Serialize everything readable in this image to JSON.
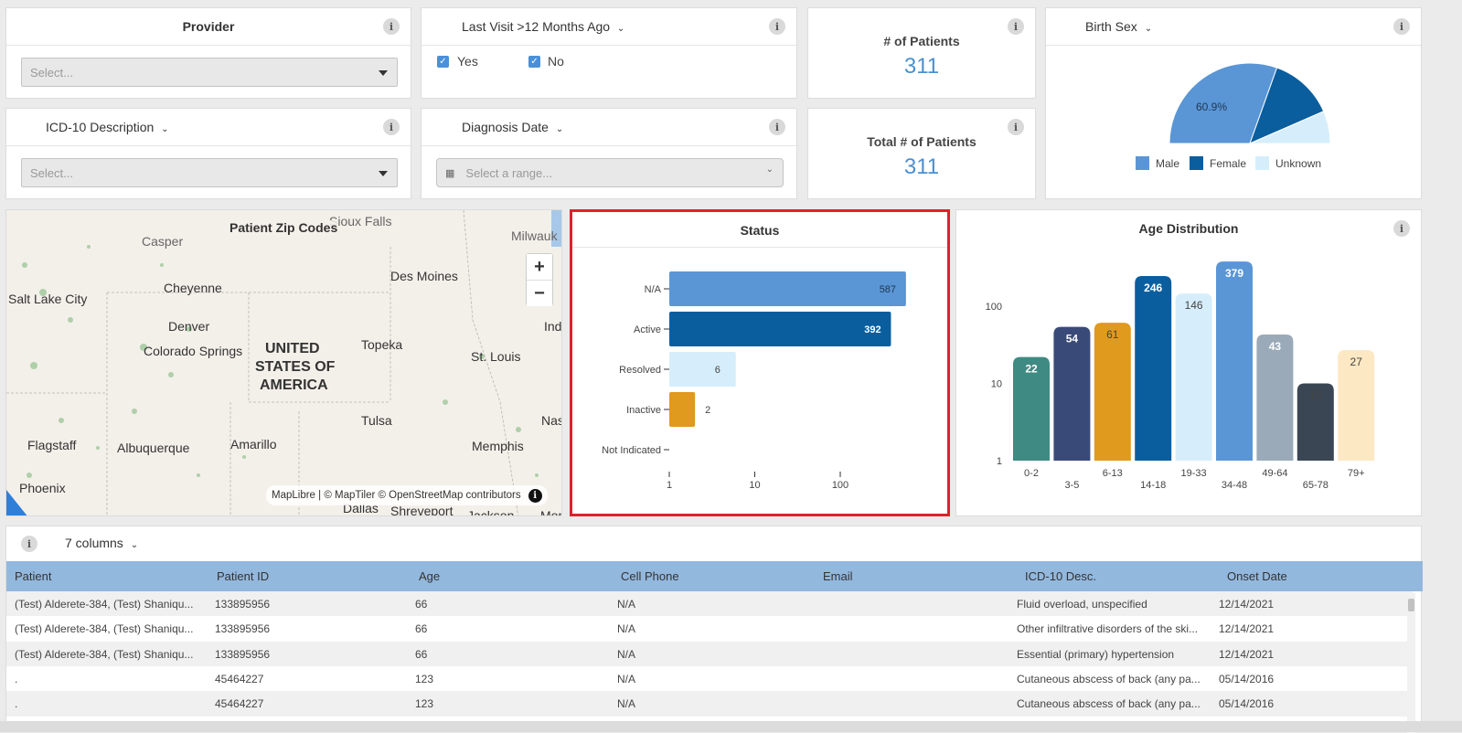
{
  "filters": {
    "provider": {
      "title": "Provider",
      "placeholder": "Select..."
    },
    "last_visit": {
      "title": "Last Visit >12 Months Ago",
      "yes": "Yes",
      "no": "No"
    },
    "icd10": {
      "title": "ICD-10 Description",
      "placeholder": "Select..."
    },
    "diagnosis_date": {
      "title": "Diagnosis Date",
      "placeholder": "Select a range..."
    }
  },
  "kpis": {
    "patients": {
      "label": "# of Patients",
      "value": "311"
    },
    "total_patients": {
      "label": "Total # of Patients",
      "value": "311"
    }
  },
  "birth_sex": {
    "title": "Birth Sex",
    "pie_label": "60.9%",
    "legend": [
      "Male",
      "Female",
      "Unknown"
    ]
  },
  "map": {
    "title": "Patient Zip Codes",
    "attribution": "MapLibre | © MapTiler © OpenStreetMap contributors",
    "labels": [
      "Sioux Falls",
      "Casper",
      "Milwauk",
      "Des Moines",
      "Cheyenne",
      "Salt Lake City",
      "Denver",
      "Ind",
      "Colorado Springs",
      "UNITED",
      "STATES OF",
      "AMERICA",
      "Topeka",
      "St. Louis",
      "Tulsa",
      "Nas",
      "Flagstaff",
      "Albuquerque",
      "Amarillo",
      "Memphis",
      "Phoenix",
      "Dallas",
      "Shreveport",
      "Jackson",
      "Mon"
    ]
  },
  "colors": {
    "accent": "#4a8fd1",
    "highlight": "#e0202a",
    "status_na": "#5a96d6",
    "status_active": "#0a5e9e",
    "status_resolved": "#d6eefb",
    "status_inactive": "#e09a1e",
    "sex_male": "#5a96d6",
    "sex_female": "#0a5e9e",
    "sex_unknown": "#d6eefb"
  },
  "table": {
    "columns_label": "7 columns",
    "headers": [
      "Patient",
      "Patient ID",
      "Age",
      "Cell Phone",
      "Email",
      "ICD-10 Desc.",
      "Onset Date"
    ],
    "rows": [
      [
        "(Test) Alderete-384, (Test) Shaniqu...",
        "133895956",
        "66",
        "N/A",
        "",
        "Fluid overload, unspecified",
        "12/14/2021"
      ],
      [
        "(Test) Alderete-384, (Test) Shaniqu...",
        "133895956",
        "66",
        "N/A",
        "",
        "Other infiltrative disorders of the ski...",
        "12/14/2021"
      ],
      [
        "(Test) Alderete-384, (Test) Shaniqu...",
        "133895956",
        "66",
        "N/A",
        "",
        "Essential (primary) hypertension",
        "12/14/2021"
      ],
      [
        ".",
        "45464227",
        "123",
        "N/A",
        "",
        "Cutaneous abscess of back (any pa...",
        "05/14/2016"
      ],
      [
        ".",
        "45464227",
        "123",
        "N/A",
        "",
        "Cutaneous abscess of back (any pa...",
        "05/14/2016"
      ]
    ]
  },
  "chart_data": [
    {
      "type": "bar",
      "title": "Status",
      "orientation": "horizontal",
      "scale": "log",
      "categories": [
        "N/A",
        "Active",
        "Resolved",
        "Inactive",
        "Not Indicated"
      ],
      "values": [
        587,
        392,
        6,
        2,
        1
      ],
      "data_labels": [
        "587",
        "392",
        "6",
        "2",
        ""
      ],
      "ticks": [
        "1",
        "10",
        "100"
      ],
      "xlim": [
        1,
        1000
      ]
    },
    {
      "type": "bar",
      "title": "Age Distribution",
      "scale": "log",
      "categories": [
        "0-2",
        "3-5",
        "6-13",
        "14-18",
        "19-33",
        "34-48",
        "49-64",
        "65-78",
        "79+"
      ],
      "values": [
        22,
        54,
        61,
        246,
        146,
        379,
        43,
        10,
        27
      ],
      "colors": [
        "#3f8a82",
        "#3a4a78",
        "#e09a1e",
        "#0a5e9e",
        "#d6eefb",
        "#5a96d6",
        "#9aaab8",
        "#3a4654",
        "#fde8c4"
      ],
      "ticks": [
        "1",
        "10",
        "100"
      ],
      "ylim": [
        1,
        500
      ]
    },
    {
      "type": "pie",
      "title": "Birth Sex",
      "categories": [
        "Male",
        "Female",
        "Unknown"
      ],
      "values": [
        60.9,
        26.0,
        13.1
      ]
    }
  ]
}
